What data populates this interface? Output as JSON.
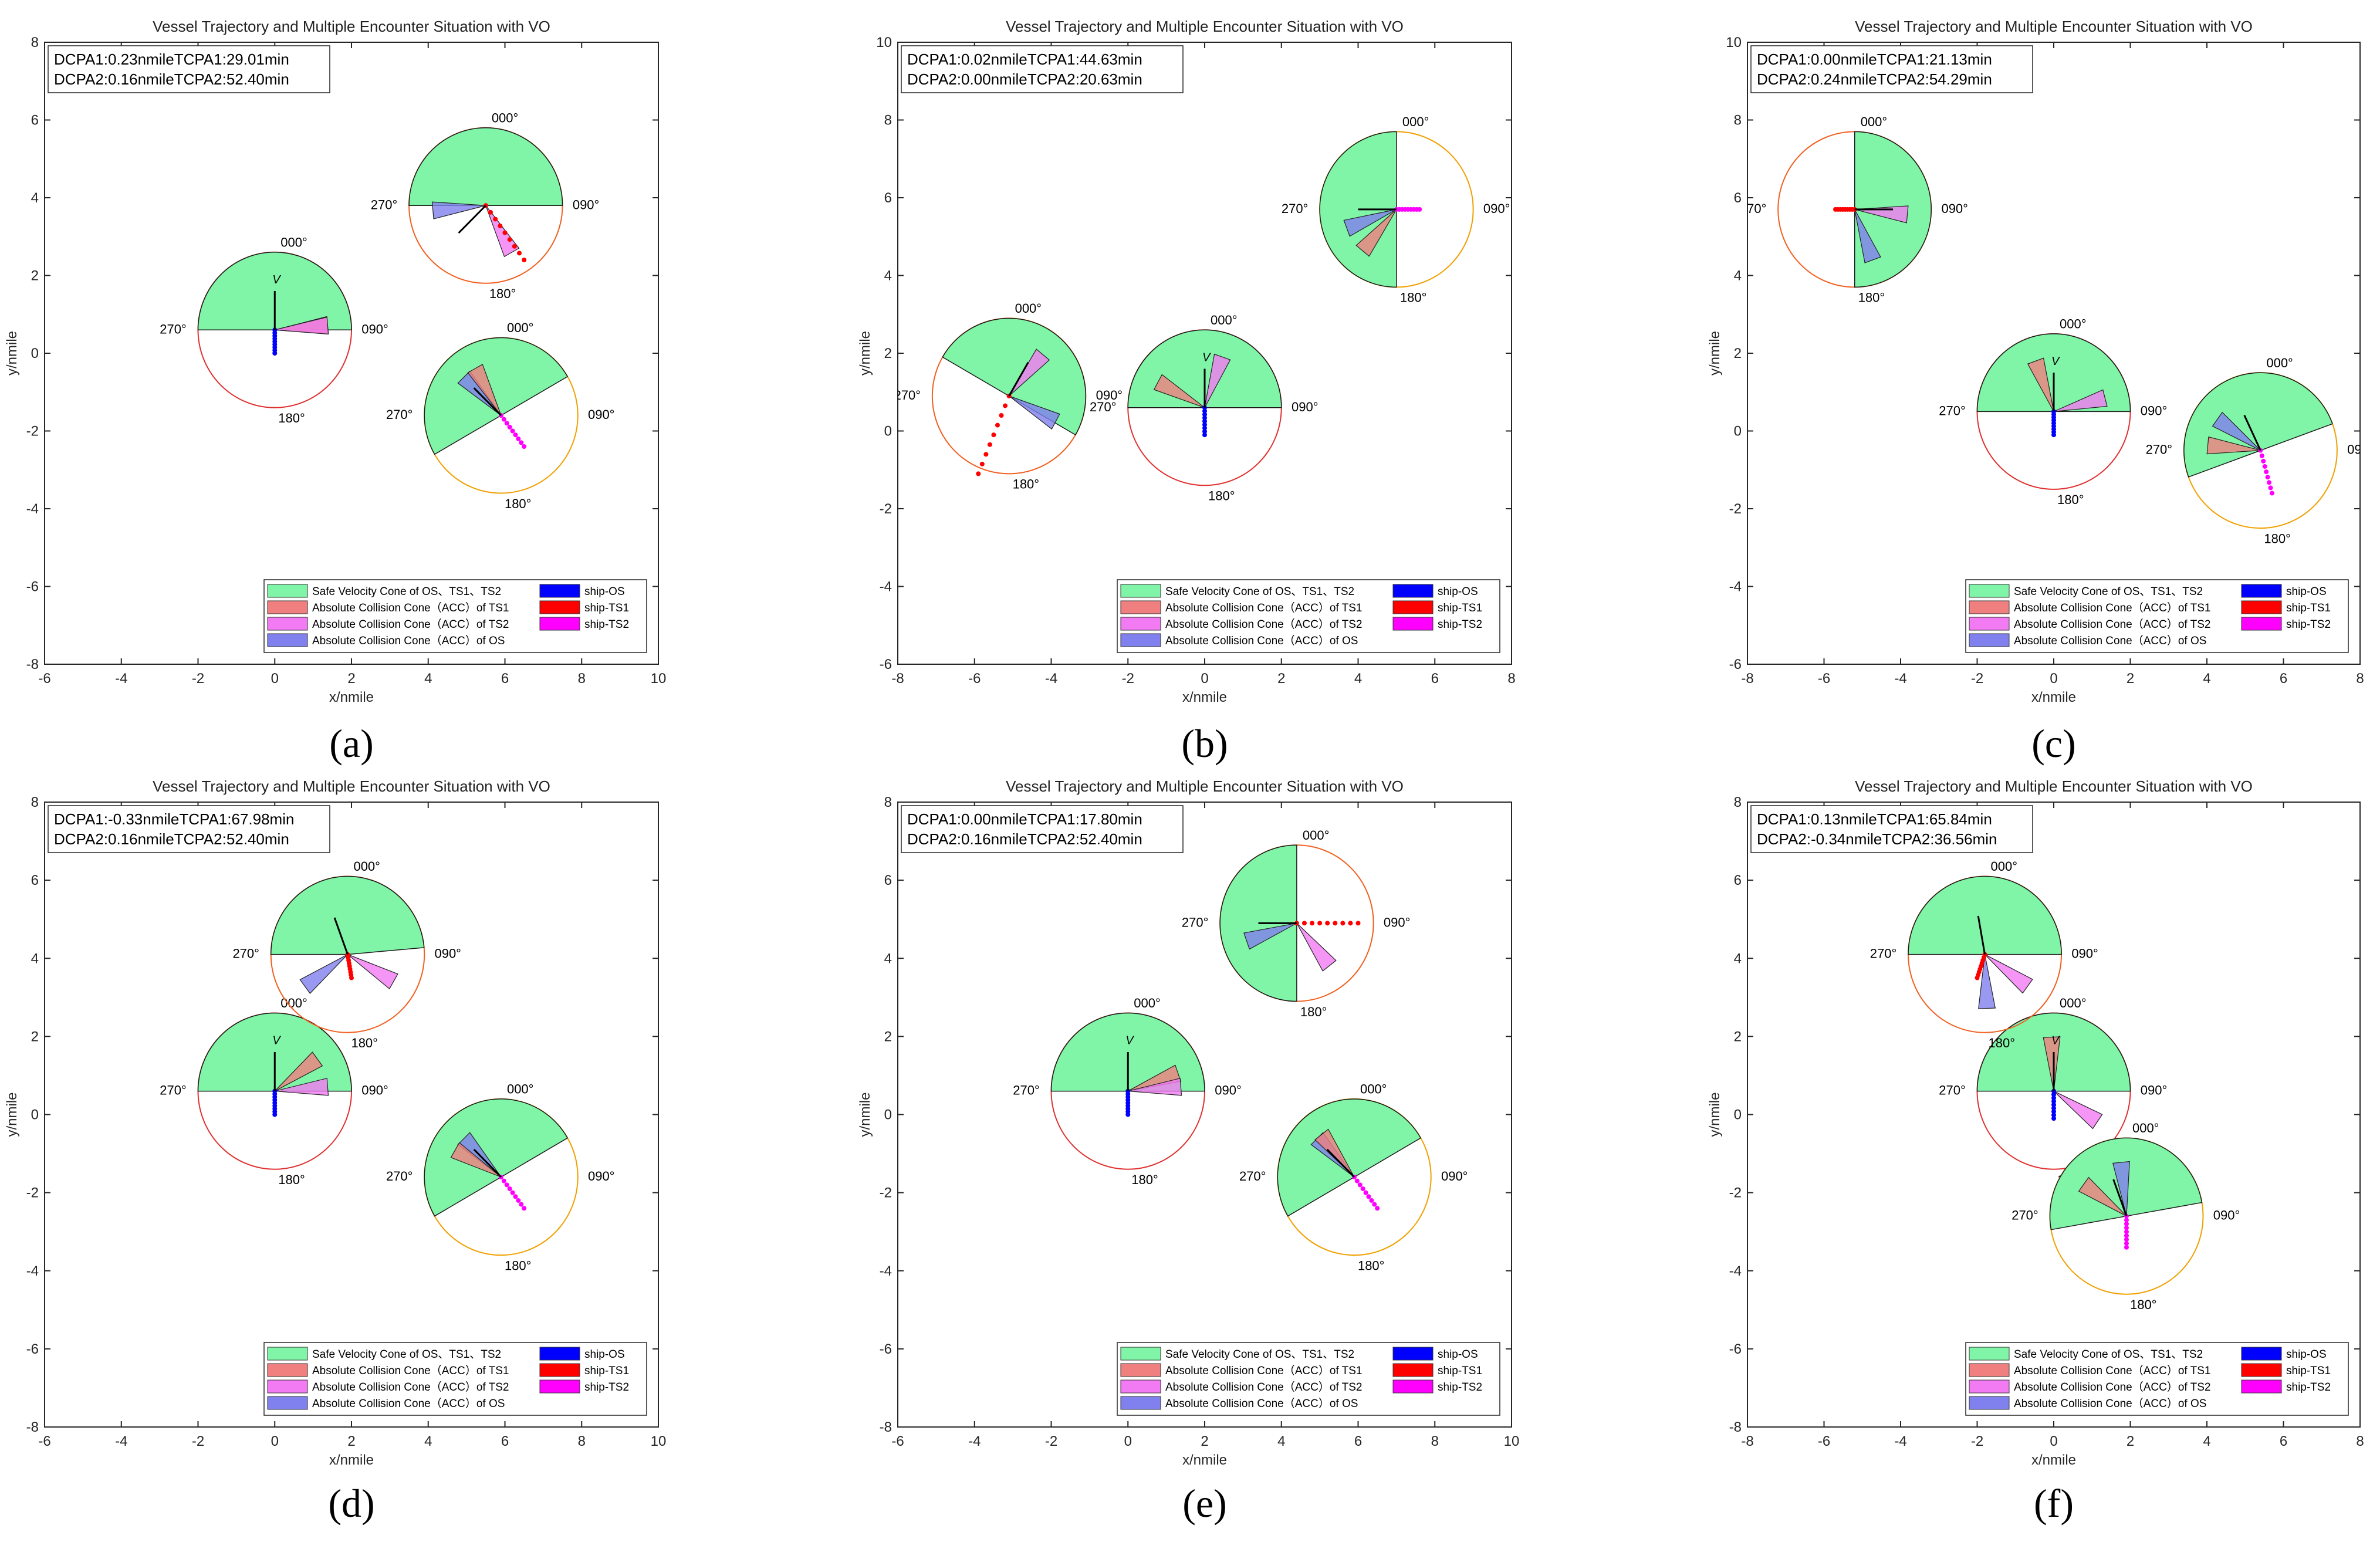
{
  "figure": {
    "common": {
      "title": "Vessel Trajectory and Multiple Encounter Situation with VO",
      "xlabel": "x/nmile",
      "ylabel": "y/nmile",
      "compass_labels": [
        "000°",
        "090°",
        "180°",
        "270°"
      ],
      "legend": [
        {
          "label": "Safe Velocity Cone of OS、TS1、TS2",
          "color": "#80f5a8"
        },
        {
          "label": "Absolute Collision Cone（ACC）of TS1",
          "color": "#f08080"
        },
        {
          "label": "Absolute Collision Cone（ACC）of TS2",
          "color": "#f27af2"
        },
        {
          "label": "Absolute Collision Cone（ACC）of OS",
          "color": "#8080ee"
        },
        {
          "label": "ship-OS",
          "color": "#0000ff"
        },
        {
          "label": "ship-TS1",
          "color": "#ff0000"
        },
        {
          "label": "ship-TS2",
          "color": "#ff00ff"
        }
      ],
      "v_label": "V"
    },
    "panels": [
      {
        "caption": "(a)",
        "info": [
          "DCPA1:0.23nmileTCPA1:29.01min",
          "DCPA2:0.16nmileTCPA2:52.40min"
        ],
        "xlim": [
          -6,
          10
        ],
        "ylim": [
          -8,
          8
        ],
        "xticks": [
          -6,
          -4,
          -2,
          0,
          2,
          4,
          6,
          8,
          10
        ],
        "yticks": [
          -8,
          -6,
          -4,
          -2,
          0,
          2,
          4,
          6,
          8
        ],
        "ships": [
          {
            "id": "OS",
            "x": 0,
            "y": 0.6,
            "heading": 0,
            "track_from": [
              0,
              0
            ],
            "svc": [
              270,
              90
            ],
            "acc_os": null
          },
          {
            "id": "TS1",
            "x": 5.5,
            "y": 3.8,
            "heading": 225,
            "track_from": [
              6.5,
              2.4
            ],
            "svc": [
              270,
              90
            ]
          },
          {
            "id": "TS2",
            "x": 5.9,
            "y": -1.6,
            "heading": 315,
            "track_from": [
              6.5,
              -2.4
            ],
            "svc": [
              240,
              60
            ]
          }
        ]
      },
      {
        "caption": "(b)",
        "info": [
          "DCPA1:0.02nmileTCPA1:44.63min",
          "DCPA2:0.00nmileTCPA2:20.63min"
        ],
        "xlim": [
          -8,
          8
        ],
        "ylim": [
          -6,
          10
        ],
        "xticks": [
          -8,
          -6,
          -4,
          -2,
          0,
          2,
          4,
          6,
          8
        ],
        "yticks": [
          -6,
          -4,
          -2,
          0,
          2,
          4,
          6,
          8,
          10
        ],
        "ships": [
          {
            "id": "OS",
            "x": 0,
            "y": 0.6,
            "heading": 0,
            "track_from": [
              0,
              -0.1
            ],
            "svc": [
              270,
              90
            ]
          },
          {
            "id": "TS1",
            "x": -5.1,
            "y": 0.9,
            "heading": 30,
            "track_from": [
              -5.9,
              -1.1
            ],
            "svc": [
              300,
              120
            ]
          },
          {
            "id": "TS2",
            "x": 5,
            "y": 5.7,
            "heading": 270,
            "track_from": [
              5.6,
              5.7
            ],
            "svc": [
              180,
              360
            ]
          }
        ]
      },
      {
        "caption": "(c)",
        "info": [
          "DCPA1:0.00nmileTCPA1:21.13min",
          "DCPA2:0.24nmileTCPA2:54.29min"
        ],
        "xlim": [
          -8,
          8
        ],
        "ylim": [
          -6,
          10
        ],
        "xticks": [
          -8,
          -6,
          -4,
          -2,
          0,
          2,
          4,
          6,
          8
        ],
        "yticks": [
          -6,
          -4,
          -2,
          0,
          2,
          4,
          6,
          8,
          10
        ],
        "ships": [
          {
            "id": "OS",
            "x": 0,
            "y": 0.5,
            "heading": 0,
            "track_from": [
              0,
              -0.1
            ],
            "svc": [
              270,
              90
            ]
          },
          {
            "id": "TS1",
            "x": -5.2,
            "y": 5.7,
            "heading": 90,
            "track_from": [
              -5.7,
              5.7
            ],
            "svc": [
              0,
              180
            ]
          },
          {
            "id": "TS2",
            "x": 5.4,
            "y": -0.5,
            "heading": 335,
            "track_from": [
              5.7,
              -1.6
            ],
            "svc": [
              250,
              70
            ]
          }
        ]
      },
      {
        "caption": "(d)",
        "info": [
          "DCPA1:-0.33nmileTCPA1:67.98min",
          "DCPA2:0.16nmileTCPA2:52.40min"
        ],
        "xlim": [
          -6,
          10
        ],
        "ylim": [
          -8,
          8
        ],
        "xticks": [
          -6,
          -4,
          -2,
          0,
          2,
          4,
          6,
          8,
          10
        ],
        "yticks": [
          -8,
          -6,
          -4,
          -2,
          0,
          2,
          4,
          6,
          8
        ],
        "ships": [
          {
            "id": "OS",
            "x": 0,
            "y": 0.6,
            "heading": 0,
            "track_from": [
              0,
              0
            ],
            "svc": [
              270,
              90
            ]
          },
          {
            "id": "TS1",
            "x": 1.9,
            "y": 4.1,
            "heading": 340,
            "track_from": [
              2,
              3.5
            ],
            "svc": [
              270,
              85
            ]
          },
          {
            "id": "TS2",
            "x": 5.9,
            "y": -1.6,
            "heading": 315,
            "track_from": [
              6.5,
              -2.4
            ],
            "svc": [
              240,
              60
            ]
          }
        ]
      },
      {
        "caption": "(e)",
        "info": [
          "DCPA1:0.00nmileTCPA1:17.80min",
          "DCPA2:0.16nmileTCPA2:52.40min"
        ],
        "xlim": [
          -6,
          10
        ],
        "ylim": [
          -8,
          8
        ],
        "xticks": [
          -6,
          -4,
          -2,
          0,
          2,
          4,
          6,
          8,
          10
        ],
        "yticks": [
          -8,
          -6,
          -4,
          -2,
          0,
          2,
          4,
          6,
          8
        ],
        "ships": [
          {
            "id": "OS",
            "x": 0,
            "y": 0.6,
            "heading": 0,
            "track_from": [
              0,
              0
            ],
            "svc": [
              270,
              90
            ]
          },
          {
            "id": "TS1",
            "x": 4.4,
            "y": 4.9,
            "heading": 270,
            "track_from": [
              6,
              4.9
            ],
            "svc": [
              180,
              360
            ]
          },
          {
            "id": "TS2",
            "x": 5.9,
            "y": -1.6,
            "heading": 315,
            "track_from": [
              6.5,
              -2.4
            ],
            "svc": [
              240,
              60
            ]
          }
        ]
      },
      {
        "caption": "(f)",
        "info": [
          "DCPA1:0.13nmileTCPA1:65.84min",
          "DCPA2:-0.34nmileTCPA2:36.56min"
        ],
        "xlim": [
          -8,
          8
        ],
        "ylim": [
          -8,
          8
        ],
        "xticks": [
          -8,
          -6,
          -4,
          -2,
          0,
          2,
          4,
          6,
          8
        ],
        "yticks": [
          -8,
          -6,
          -4,
          -2,
          0,
          2,
          4,
          6,
          8
        ],
        "ships": [
          {
            "id": "OS",
            "x": 0,
            "y": 0.6,
            "heading": 0,
            "track_from": [
              0,
              -0.1
            ],
            "svc": [
              270,
              90
            ]
          },
          {
            "id": "TS1",
            "x": -1.8,
            "y": 4.1,
            "heading": 350,
            "track_from": [
              -2,
              3.5
            ],
            "svc": [
              270,
              90
            ]
          },
          {
            "id": "TS2",
            "x": 1.9,
            "y": -2.6,
            "heading": 340,
            "track_from": [
              1.9,
              -3.4
            ],
            "svc": [
              260,
              80
            ]
          }
        ]
      }
    ]
  },
  "chart_data": [
    {
      "type": "scatter",
      "title": "Vessel Trajectory and Multiple Encounter Situation with VO",
      "xlabel": "x/nmile",
      "ylabel": "y/nmile",
      "xlim": [
        -6,
        10
      ],
      "ylim": [
        -8,
        8
      ],
      "series": [
        {
          "name": "ship-OS",
          "x": [
            0,
            0,
            0
          ],
          "y": [
            0,
            0.3,
            0.6
          ]
        },
        {
          "name": "ship-TS1",
          "x": [
            6.5,
            6,
            5.5
          ],
          "y": [
            2.4,
            3.1,
            3.8
          ]
        },
        {
          "name": "ship-TS2",
          "x": [
            6.5,
            6.2,
            5.9
          ],
          "y": [
            -2.4,
            -2,
            -1.6
          ]
        }
      ]
    },
    {
      "type": "scatter",
      "title": "Vessel Trajectory and Multiple Encounter Situation with VO",
      "xlabel": "x/nmile",
      "ylabel": "y/nmile",
      "xlim": [
        -8,
        8
      ],
      "ylim": [
        -6,
        10
      ]
    },
    {
      "type": "scatter",
      "title": "Vessel Trajectory and Multiple Encounter Situation with VO",
      "xlabel": "x/nmile",
      "ylabel": "y/nmile",
      "xlim": [
        -8,
        8
      ],
      "ylim": [
        -6,
        10
      ]
    },
    {
      "type": "scatter",
      "title": "Vessel Trajectory and Multiple Encounter Situation with VO",
      "xlabel": "x/nmile",
      "ylabel": "y/nmile",
      "xlim": [
        -6,
        10
      ],
      "ylim": [
        -8,
        8
      ]
    },
    {
      "type": "scatter",
      "title": "Vessel Trajectory and Multiple Encounter Situation with VO",
      "xlabel": "x/nmile",
      "ylabel": "y/nmile",
      "xlim": [
        -6,
        10
      ],
      "ylim": [
        -8,
        8
      ]
    },
    {
      "type": "scatter",
      "title": "Vessel Trajectory and Multiple Encounter Situation with VO",
      "xlabel": "x/nmile",
      "ylabel": "y/nmile",
      "xlim": [
        -8,
        8
      ],
      "ylim": [
        -8,
        8
      ]
    }
  ]
}
